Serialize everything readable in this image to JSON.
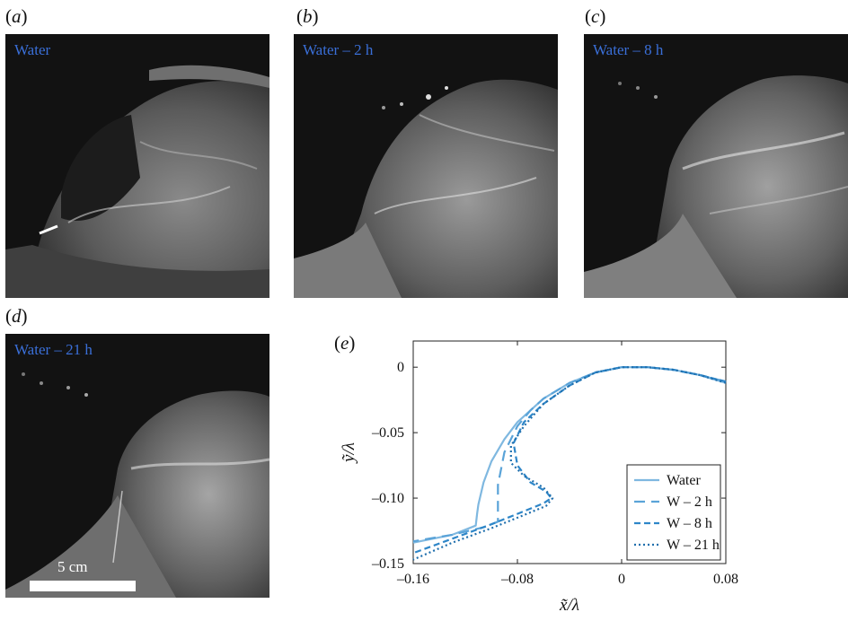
{
  "panels": [
    {
      "letter": "a",
      "tag": "Water"
    },
    {
      "letter": "b",
      "tag": "Water – 2 h"
    },
    {
      "letter": "c",
      "tag": "Water – 8 h"
    },
    {
      "letter": "d",
      "tag": "Water – 21 h"
    }
  ],
  "scale_bar": {
    "label": "5 cm"
  },
  "chart_panel": {
    "letter": "e"
  },
  "chart_data": {
    "type": "line",
    "xlabel": "x̃/λ",
    "ylabel": "ỹ/λ",
    "xlim": [
      -0.16,
      0.08
    ],
    "ylim": [
      -0.15,
      0.02
    ],
    "xticks": [
      -0.16,
      -0.08,
      0,
      0.08
    ],
    "xtick_labels": [
      "–0.16",
      "–0.08",
      "0",
      "0.08"
    ],
    "yticks": [
      0,
      -0.05,
      -0.1,
      -0.15
    ],
    "ytick_labels": [
      "0",
      "–0.05",
      "–0.10",
      "–0.15"
    ],
    "legend_position": "bottom-right",
    "series": [
      {
        "name": "Water",
        "style": "solid",
        "color": "#7fb8e0",
        "x": [
          0.08,
          0.06,
          0.04,
          0.02,
          0.0,
          -0.02,
          -0.04,
          -0.06,
          -0.08,
          -0.09,
          -0.1,
          -0.106,
          -0.11,
          -0.111,
          -0.112,
          -0.13,
          -0.16
        ],
        "y": [
          -0.012,
          -0.006,
          -0.002,
          0.0,
          0.0,
          -0.004,
          -0.012,
          -0.024,
          -0.042,
          -0.055,
          -0.072,
          -0.088,
          -0.105,
          -0.112,
          -0.121,
          -0.128,
          -0.134
        ]
      },
      {
        "name": "W – 2 h",
        "style": "dash-long",
        "color": "#5aa3d8",
        "x": [
          0.08,
          0.06,
          0.04,
          0.02,
          0.0,
          -0.02,
          -0.04,
          -0.06,
          -0.07,
          -0.08,
          -0.09,
          -0.095,
          -0.095,
          -0.105,
          -0.13,
          -0.16
        ],
        "y": [
          -0.011,
          -0.006,
          -0.002,
          0.0,
          0.0,
          -0.004,
          -0.012,
          -0.024,
          -0.033,
          -0.045,
          -0.065,
          -0.09,
          -0.118,
          -0.122,
          -0.128,
          -0.133
        ]
      },
      {
        "name": "W – 8 h",
        "style": "dash",
        "color": "#2e86c8",
        "x": [
          0.08,
          0.06,
          0.04,
          0.02,
          0.0,
          -0.02,
          -0.04,
          -0.06,
          -0.075,
          -0.083,
          -0.08,
          -0.07,
          -0.058,
          -0.054,
          -0.06,
          -0.08,
          -0.1,
          -0.13,
          -0.16
        ],
        "y": [
          -0.011,
          -0.006,
          -0.002,
          0.0,
          0.0,
          -0.004,
          -0.014,
          -0.028,
          -0.042,
          -0.058,
          -0.075,
          -0.088,
          -0.095,
          -0.1,
          -0.104,
          -0.112,
          -0.12,
          -0.131,
          -0.142
        ]
      },
      {
        "name": "W – 21 h",
        "style": "dot",
        "color": "#1f6fad",
        "x": [
          0.08,
          0.06,
          0.04,
          0.02,
          0.0,
          -0.02,
          -0.04,
          -0.06,
          -0.075,
          -0.085,
          -0.085,
          -0.075,
          -0.06,
          -0.053,
          -0.058,
          -0.08,
          -0.1,
          -0.13,
          -0.16
        ],
        "y": [
          -0.012,
          -0.006,
          -0.002,
          0.0,
          0.0,
          -0.004,
          -0.014,
          -0.028,
          -0.045,
          -0.06,
          -0.073,
          -0.083,
          -0.092,
          -0.1,
          -0.106,
          -0.115,
          -0.123,
          -0.134,
          -0.147
        ]
      }
    ]
  }
}
